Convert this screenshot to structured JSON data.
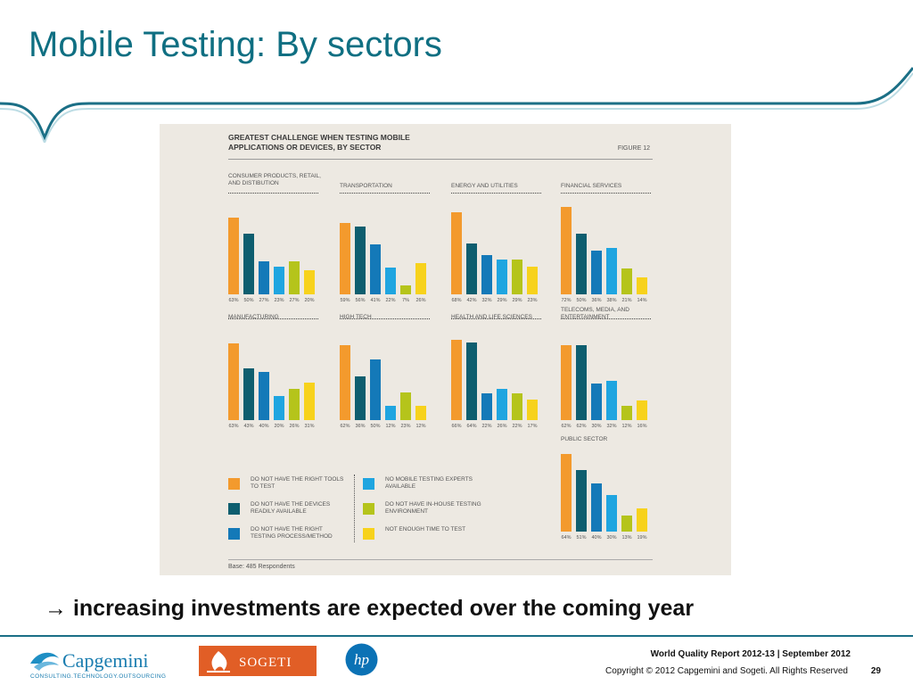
{
  "slide": {
    "title": "Mobile Testing: By sectors",
    "takeaway": "→ increasing investments are expected over the coming year",
    "footer_report": "World Quality Report 2012-13 | September 2012",
    "footer_copyright": "Copyright © 2012 Capgemini and Sogeti. All Rights Reserved",
    "page_number": "29",
    "logos": {
      "capgemini": "Capgemini",
      "capgemini_tagline": "CONSULTING.TECHNOLOGY.OUTSOURCING",
      "sogeti": "SOGETI",
      "hp": "hp"
    },
    "accent_color": "#0f6f82"
  },
  "chart_data": {
    "type": "bar",
    "title": "GREATEST CHALLENGE WHEN TESTING MOBILE APPLICATIONS OR DEVICES, BY SECTOR",
    "figure_label": "FIGURE 12",
    "base_note": "Base: 485 Respondents",
    "ylim": [
      0,
      75
    ],
    "grid": false,
    "legend_position": "bottom-left",
    "series": [
      {
        "name": "DO NOT HAVE THE RIGHT TOOLS TO TEST",
        "color": "#f39a2d"
      },
      {
        "name": "DO NOT HAVE THE DEVICES READILY AVAILABLE",
        "color": "#0e5e6f"
      },
      {
        "name": "DO NOT HAVE THE RIGHT TESTING PROCESS/METHOD",
        "color": "#1479b8"
      },
      {
        "name": "NO MOBILE TESTING EXPERTS AVAILABLE",
        "color": "#1fa5e0"
      },
      {
        "name": "DO NOT HAVE IN-HOUSE TESTING ENVIRONMENT",
        "color": "#b5c41b"
      },
      {
        "name": "NOT ENOUGH TIME TO TEST",
        "color": "#f7d21c"
      }
    ],
    "panels": [
      {
        "sector": "CONSUMER PRODUCTS, RETAIL, AND DISTIBUTION",
        "values": [
          63,
          50,
          27,
          23,
          27,
          20
        ],
        "labels": [
          "63%",
          "50%",
          "27%",
          "23%",
          "27%",
          "20%"
        ]
      },
      {
        "sector": "TRANSPORTATION",
        "values": [
          59,
          56,
          41,
          22,
          7,
          26
        ],
        "labels": [
          "59%",
          "56%",
          "41%",
          "22%",
          "7%",
          "26%"
        ]
      },
      {
        "sector": "ENERGY AND UTILITIES",
        "values": [
          68,
          42,
          32,
          29,
          29,
          23
        ],
        "labels": [
          "68%",
          "42%",
          "32%",
          "29%",
          "29%",
          "23%"
        ]
      },
      {
        "sector": "FINANCIAL SERVICES",
        "values": [
          72,
          50,
          36,
          38,
          21,
          14
        ],
        "labels": [
          "72%",
          "50%",
          "36%",
          "38%",
          "21%",
          "14%"
        ]
      },
      {
        "sector": "MANUFACTURING",
        "values": [
          63,
          43,
          40,
          20,
          26,
          31
        ],
        "labels": [
          "63%",
          "43%",
          "40%",
          "20%",
          "26%",
          "31%"
        ]
      },
      {
        "sector": "HIGH TECH",
        "values": [
          62,
          36,
          50,
          12,
          23,
          12
        ],
        "labels": [
          "62%",
          "36%",
          "50%",
          "12%",
          "23%",
          "12%"
        ]
      },
      {
        "sector": "HEALTH AND LIFE SCIENCES",
        "values": [
          66,
          64,
          22,
          26,
          22,
          17
        ],
        "labels": [
          "66%",
          "64%",
          "22%",
          "26%",
          "22%",
          "17%"
        ]
      },
      {
        "sector": "TELECOMS, MEDIA, AND ENTERTAINMENT",
        "values": [
          62,
          62,
          30,
          32,
          12,
          16
        ],
        "labels": [
          "62%",
          "62%",
          "30%",
          "32%",
          "12%",
          "16%"
        ]
      },
      {
        "sector": "PUBLIC SECTOR",
        "values": [
          64,
          51,
          40,
          30,
          13,
          19
        ],
        "labels": [
          "64%",
          "51%",
          "40%",
          "30%",
          "13%",
          "19%"
        ]
      }
    ]
  }
}
